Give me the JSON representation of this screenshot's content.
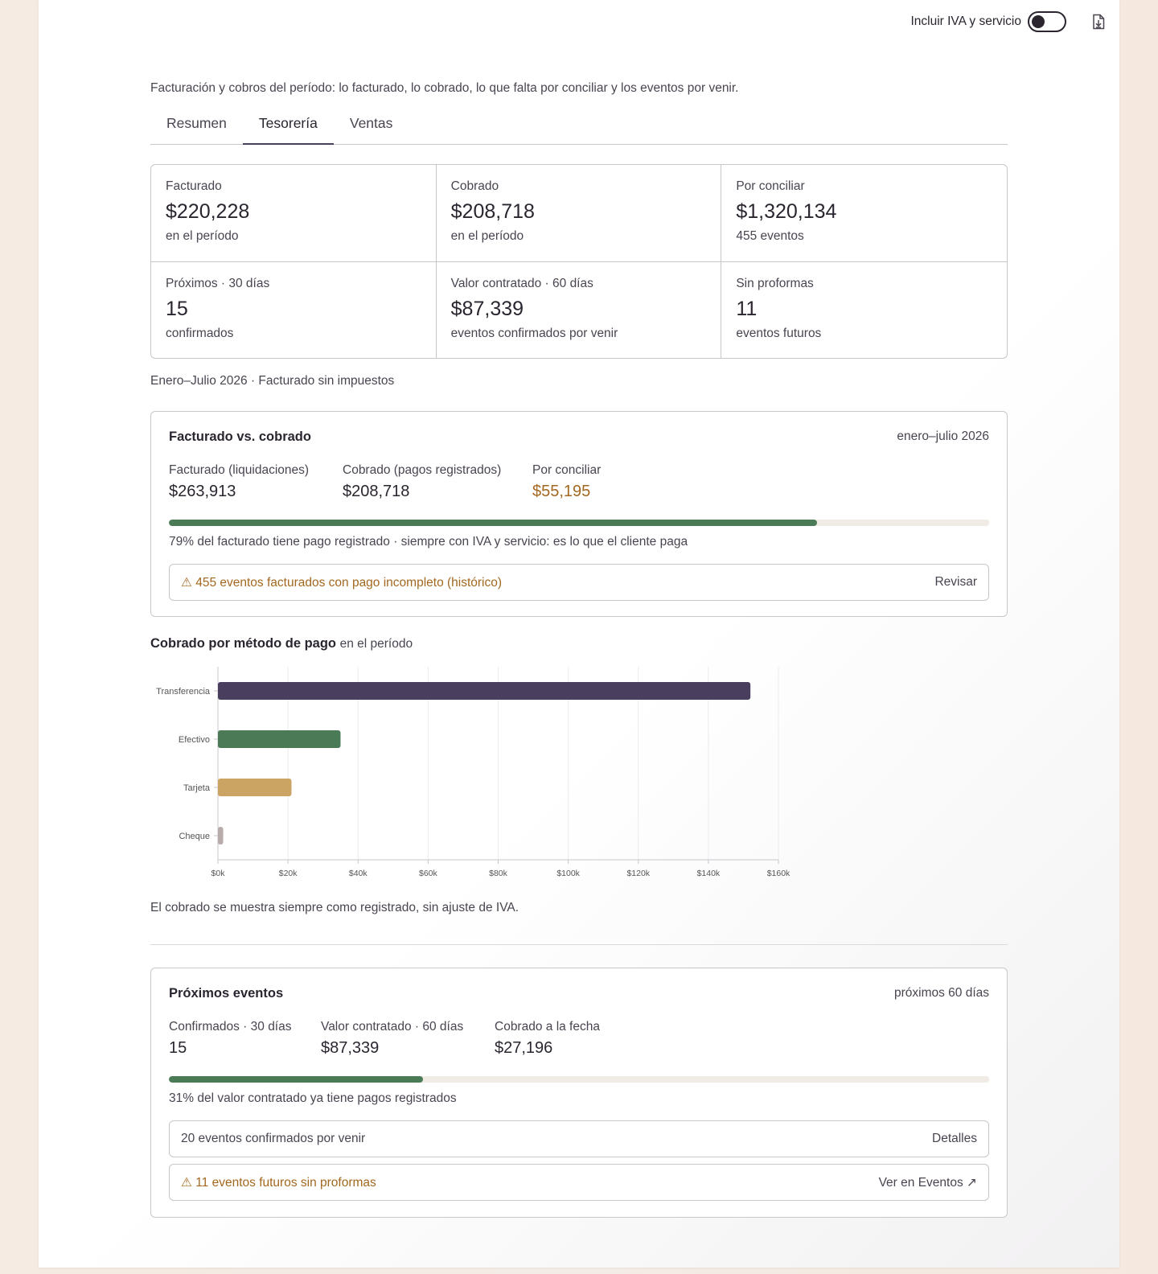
{
  "toolbar": {
    "vat_toggle_label": "Incluir IVA y servicio",
    "vat_toggle_on": false,
    "export_icon": "download-file-icon"
  },
  "intro": "Facturación y cobros del período: lo facturado, lo cobrado, lo que falta por conciliar y los eventos por venir.",
  "tabs": [
    {
      "label": "Resumen",
      "active": false
    },
    {
      "label": "Tesorería",
      "active": true
    },
    {
      "label": "Ventas",
      "active": false
    }
  ],
  "kpis": [
    {
      "label": "Facturado",
      "value": "$220,228",
      "sub": "en el período"
    },
    {
      "label": "Cobrado",
      "value": "$208,718",
      "sub": "en el período"
    },
    {
      "label": "Por conciliar",
      "value": "$1,320,134",
      "sub": "455 eventos"
    },
    {
      "label": "Próximos · 30 días",
      "value": "15",
      "sub": "confirmados"
    },
    {
      "label": "Valor contratado · 60 días",
      "value": "$87,339",
      "sub": "eventos confirmados por venir"
    },
    {
      "label": "Sin proformas",
      "value": "11",
      "sub": "eventos futuros"
    }
  ],
  "period_note": "Enero–Julio 2026 · Facturado sin impuestos",
  "billed_vs_collected": {
    "title": "Facturado vs. cobrado",
    "range": "enero–julio 2026",
    "stats": [
      {
        "label": "Facturado (liquidaciones)",
        "value": "$263,913"
      },
      {
        "label": "Cobrado (pagos registrados)",
        "value": "$208,718"
      },
      {
        "label": "Por conciliar",
        "value": "$55,195"
      }
    ],
    "progress_fraction": 0.79,
    "progress_note": "79% del facturado tiene pago registrado · siempre con IVA y servicio: es lo que el cliente paga",
    "alert": {
      "text": "⚠ 455 eventos facturados con pago incompleto (histórico)",
      "action": "Revisar"
    }
  },
  "payment_methods": {
    "title": "Cobrado por método de pago",
    "title_suffix": "en el período",
    "note": "El cobrado se muestra siempre como registrado, sin ajuste de IVA."
  },
  "chart_data": {
    "type": "bar",
    "orientation": "horizontal",
    "categories": [
      "Transferencia",
      "Efectivo",
      "Tarjeta",
      "Cheque"
    ],
    "values": [
      152000,
      35000,
      21000,
      1500
    ],
    "colors": [
      "#4a3e5f",
      "#4b7a57",
      "#cba464",
      "#b7aca9"
    ],
    "xlim": [
      0,
      160000
    ],
    "x_ticks": [
      0,
      20000,
      40000,
      60000,
      80000,
      100000,
      120000,
      140000,
      160000
    ],
    "x_tick_labels": [
      "$0k",
      "$20k",
      "$40k",
      "$60k",
      "$80k",
      "$100k",
      "$120k",
      "$140k",
      "$160k"
    ],
    "grid": true,
    "title": "",
    "xlabel": "",
    "ylabel": ""
  },
  "upcoming": {
    "title": "Próximos eventos",
    "range": "próximos 60 días",
    "stats": [
      {
        "label": "Confirmados · 30 días",
        "value": "15"
      },
      {
        "label": "Valor contratado · 60 días",
        "value": "$87,339"
      },
      {
        "label": "Cobrado a la fecha",
        "value": "$27,196"
      }
    ],
    "progress_fraction": 0.31,
    "progress_note": "31% del valor contratado ya tiene pagos registrados",
    "rows": [
      {
        "text": "20 eventos confirmados por venir",
        "action": "Detalles",
        "warn": false
      },
      {
        "text": "⚠ 11 eventos futuros sin proformas",
        "action": "Ver en Eventos ↗",
        "warn": true
      }
    ]
  }
}
